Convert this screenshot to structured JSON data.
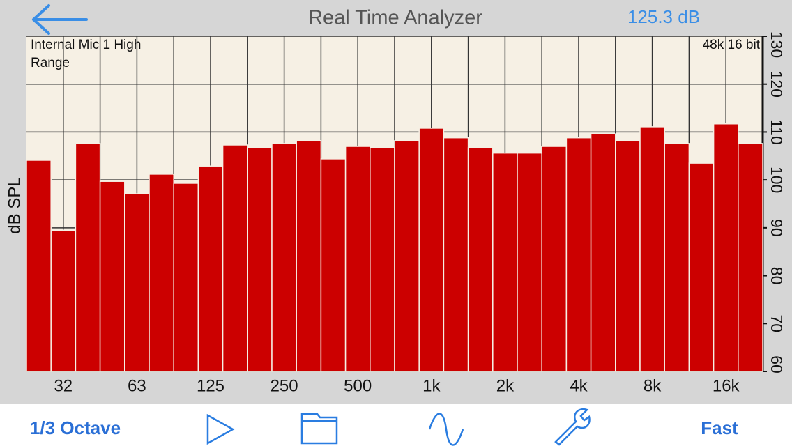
{
  "header": {
    "title": "Real Time Analyzer",
    "level": "125.3 dB"
  },
  "chart_data": {
    "type": "bar",
    "ylabel": "dB SPL",
    "input_label": "Internal Mic 1 High Range",
    "format_label": "48k 16 bit",
    "categories": [
      null,
      "32",
      null,
      null,
      "63",
      null,
      null,
      "125",
      null,
      null,
      "250",
      null,
      null,
      "500",
      null,
      null,
      "1k",
      null,
      null,
      "2k",
      null,
      null,
      "4k",
      null,
      null,
      "8k",
      null,
      null,
      "16k",
      null
    ],
    "values": [
      104.1,
      89.5,
      107.6,
      99.7,
      97.1,
      101.2,
      99.3,
      102.9,
      107.3,
      106.7,
      107.6,
      108.2,
      104.4,
      107.0,
      106.7,
      108.2,
      110.8,
      108.8,
      106.7,
      105.6,
      105.6,
      107.0,
      108.8,
      109.6,
      108.2,
      111.1,
      107.6,
      103.5,
      111.7,
      107.6
    ],
    "color": "#cc0000",
    "ylim": [
      60,
      130
    ],
    "yticks": [
      60,
      70,
      80,
      90,
      100,
      110,
      120,
      130
    ],
    "grid": true
  },
  "toolbar": {
    "bands": "1/3 Octave",
    "speed": "Fast"
  }
}
